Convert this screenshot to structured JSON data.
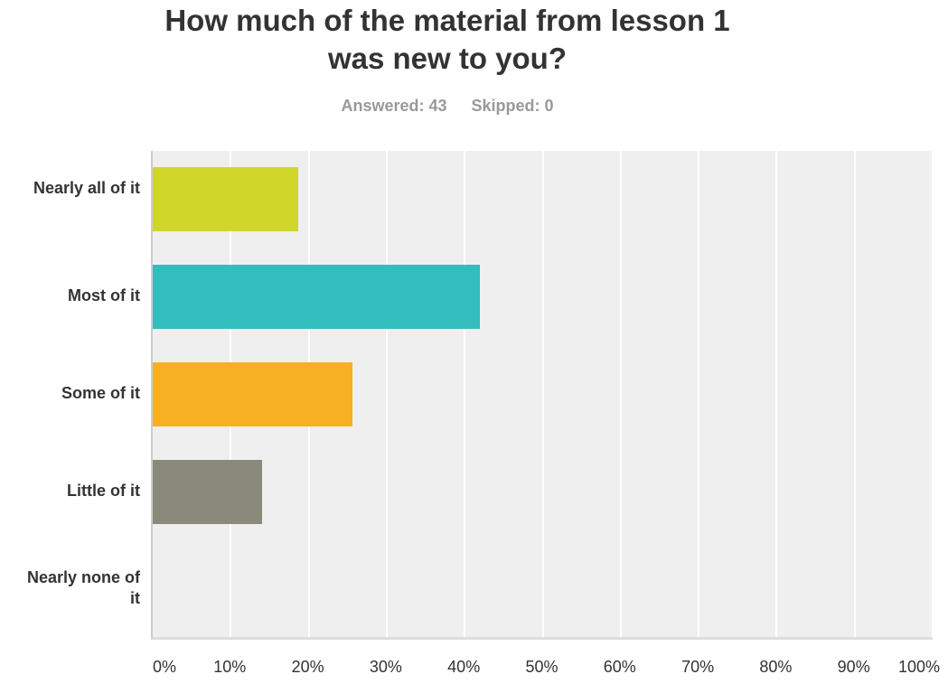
{
  "header": {
    "title_line1": "How much of the material from lesson 1",
    "title_line2": "was new to you?",
    "answered": "Answered: 43",
    "skipped": "Skipped: 0"
  },
  "chart_data": {
    "type": "bar",
    "orientation": "horizontal",
    "title": "How much of the material from lesson 1 was new to you?",
    "subtitle": "Answered: 43  Skipped: 0",
    "categories": [
      "Nearly all of it",
      "Most of it",
      "Some of it",
      "Little of it",
      "Nearly none of it"
    ],
    "values": [
      18.6,
      41.9,
      25.6,
      14.0,
      0
    ],
    "colors": [
      "#d0d52a",
      "#33bdbf",
      "#f7b022",
      "#8a8a7a",
      "#cccccc"
    ],
    "xlabel": "",
    "ylabel": "",
    "xlim": [
      0,
      100
    ],
    "xticks": [
      "0%",
      "10%",
      "20%",
      "30%",
      "40%",
      "50%",
      "60%",
      "70%",
      "80%",
      "90%",
      "100%"
    ],
    "grid": true,
    "legend": "none"
  },
  "labels": {
    "cat0": "Nearly all of it",
    "cat1": "Most of it",
    "cat2": "Some of it",
    "cat3": "Little of it",
    "cat4": "Nearly none of it"
  },
  "ticks": [
    "0%",
    "10%",
    "20%",
    "30%",
    "40%",
    "50%",
    "60%",
    "70%",
    "80%",
    "90%",
    "100%"
  ]
}
